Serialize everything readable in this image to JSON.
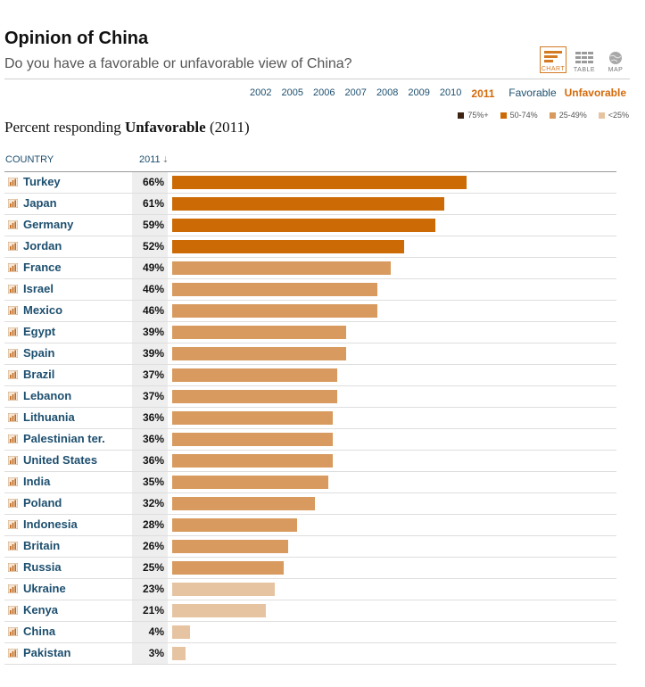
{
  "header": {
    "title": "Opinion of China",
    "subtitle": "Do you have a favorable or unfavorable view of China?"
  },
  "views": [
    {
      "label": "CHART",
      "icon": "bar-chart-icon",
      "active": true
    },
    {
      "label": "TABLE",
      "icon": "table-icon",
      "active": false
    },
    {
      "label": "MAP",
      "icon": "globe-icon",
      "active": false
    }
  ],
  "years": [
    "2002",
    "2005",
    "2006",
    "2007",
    "2008",
    "2009",
    "2010",
    "2011"
  ],
  "active_year": "2011",
  "toggle": {
    "favorable_label": "Favorable",
    "unfavorable_label": "Unfavorable",
    "active": "Unfavorable"
  },
  "legend": [
    {
      "label": "75%+",
      "color": "#3d2412"
    },
    {
      "label": "50-74%",
      "color": "#cc6a06"
    },
    {
      "label": "25-49%",
      "color": "#d89a5e"
    },
    {
      "label": "<25%",
      "color": "#e6c4a2"
    }
  ],
  "caption": {
    "prefix": "Percent responding ",
    "emphasis": "Unfavorable",
    "suffix": " (2011)"
  },
  "columns": {
    "country": "COUNTRY",
    "year": "2011"
  },
  "colors": {
    "accent": "#d46a0a",
    "link": "#1d4f6f"
  },
  "chart_data": {
    "type": "bar",
    "orientation": "horizontal",
    "categories": [
      "Turkey",
      "Japan",
      "Germany",
      "Jordan",
      "France",
      "Israel",
      "Mexico",
      "Egypt",
      "Spain",
      "Brazil",
      "Lebanon",
      "Lithuania",
      "Palestinian ter.",
      "United States",
      "India",
      "Poland",
      "Indonesia",
      "Britain",
      "Russia",
      "Ukraine",
      "Kenya",
      "China",
      "Pakistan"
    ],
    "values": [
      66,
      61,
      59,
      52,
      49,
      46,
      46,
      39,
      39,
      37,
      37,
      36,
      36,
      36,
      35,
      32,
      28,
      26,
      25,
      23,
      21,
      4,
      3
    ],
    "value_labels": [
      "66%",
      "61%",
      "59%",
      "52%",
      "49%",
      "46%",
      "46%",
      "39%",
      "39%",
      "37%",
      "37%",
      "36%",
      "36%",
      "36%",
      "35%",
      "32%",
      "28%",
      "26%",
      "25%",
      "23%",
      "21%",
      "4%",
      "3%"
    ],
    "xlim": [
      0,
      100
    ],
    "grid": false
  }
}
